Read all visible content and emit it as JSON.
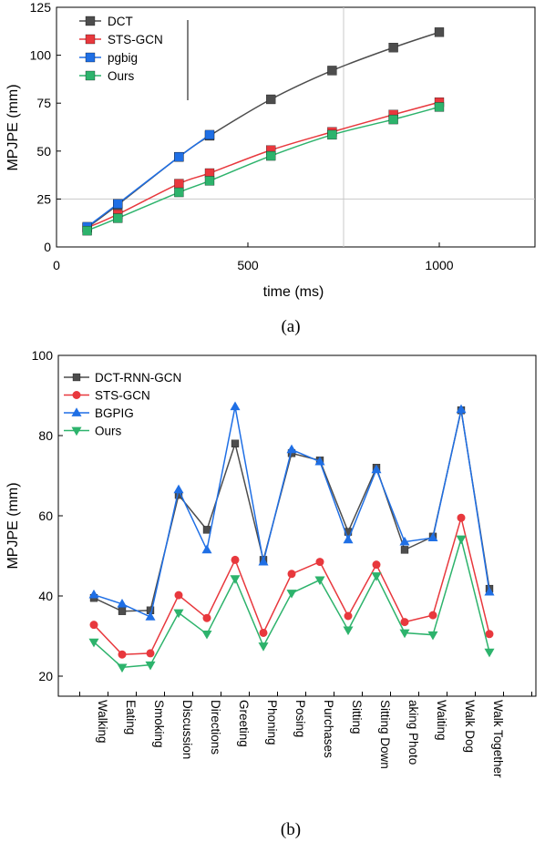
{
  "chart_data": [
    {
      "type": "line",
      "panel_label": "(a)",
      "xlabel": "time (ms)",
      "ylabel": "MPJPE (mm)",
      "xlim": [
        0,
        1250
      ],
      "ylim": [
        0,
        125
      ],
      "xticks": [
        0,
        500,
        1000
      ],
      "yticks": [
        0,
        25,
        50,
        75,
        100,
        125
      ],
      "ref_lines": {
        "x": 750,
        "y": 25
      },
      "legend_position": "top-left",
      "series": [
        {
          "name": "DCT",
          "color": "#4d4d4d",
          "marker": "square",
          "x": [
            80,
            160,
            320,
            400,
            560,
            720,
            880,
            1000
          ],
          "y": [
            10,
            22,
            47,
            58,
            77,
            92,
            104,
            112
          ]
        },
        {
          "name": "STS-GCN",
          "color": "#e8383d",
          "marker": "square",
          "x": [
            80,
            160,
            320,
            400,
            560,
            720,
            880,
            1000
          ],
          "y": [
            10,
            17,
            33,
            38.5,
            50.5,
            60,
            69,
            75.5
          ]
        },
        {
          "name": "pgbig",
          "color": "#1f6fe5",
          "marker": "square",
          "x": [
            80,
            160,
            320,
            400
          ],
          "y": [
            10.5,
            22.5,
            47,
            58.5
          ]
        },
        {
          "name": "Ours",
          "color": "#2db36c",
          "marker": "square",
          "x": [
            80,
            160,
            320,
            400,
            560,
            720,
            880,
            1000
          ],
          "y": [
            8.5,
            15,
            28.5,
            34.5,
            47.5,
            58.5,
            66.5,
            73
          ]
        }
      ]
    },
    {
      "type": "line",
      "panel_label": "(b)",
      "xlabel": "",
      "ylabel": "MPJPE (mm)",
      "ylim": [
        15,
        100
      ],
      "yticks": [
        20,
        40,
        60,
        80,
        100
      ],
      "legend_position": "top-left",
      "categories": [
        "Walking",
        "Eating",
        "Smoking",
        "Discussion",
        "Directions",
        "Greeting",
        "Phoning",
        "Posing",
        "Purchases",
        "Sitting",
        "Sitting Down",
        "aking Photo",
        "Waiting",
        "Walk Dog",
        "Walk Together"
      ],
      "series": [
        {
          "name": "DCT-RNN-GCN",
          "color": "#4d4d4d",
          "marker": "square",
          "values": [
            39.5,
            36.2,
            36.4,
            65.2,
            56.5,
            78.0,
            49.0,
            75.6,
            73.8,
            56.0,
            72.0,
            51.5,
            54.8,
            86.3,
            41.8
          ]
        },
        {
          "name": "STS-GCN",
          "color": "#e8383d",
          "marker": "circle",
          "values": [
            32.8,
            25.4,
            25.7,
            40.2,
            34.5,
            49.0,
            30.8,
            45.5,
            48.5,
            35.0,
            47.8,
            33.5,
            35.2,
            59.5,
            30.5
          ]
        },
        {
          "name": "BGPIG",
          "color": "#1f6fe5",
          "marker": "triangle-up",
          "values": [
            40.3,
            38.0,
            34.8,
            66.5,
            51.5,
            87.2,
            48.5,
            76.5,
            73.5,
            54.0,
            71.5,
            53.5,
            54.5,
            86.5,
            41.0
          ]
        },
        {
          "name": "Ours",
          "color": "#2db36c",
          "marker": "triangle-down",
          "values": [
            28.5,
            22.2,
            22.8,
            35.8,
            30.5,
            44.3,
            27.5,
            40.7,
            44.0,
            31.5,
            45.0,
            30.8,
            30.3,
            54.2,
            26.0
          ]
        }
      ]
    }
  ]
}
